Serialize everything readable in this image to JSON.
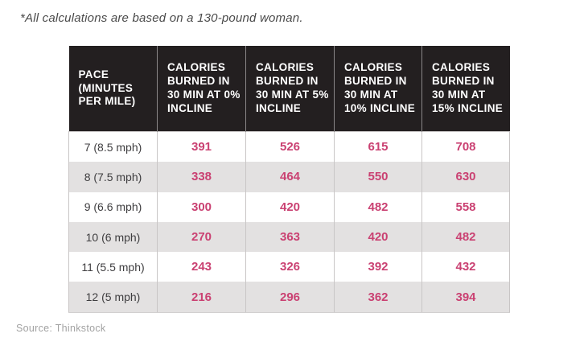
{
  "note": "*All calculations are based on a 130-pound woman.",
  "source": "Source: Thinkstock",
  "colors": {
    "header_bg": "#231f20",
    "header_text": "#ffffff",
    "row_white": "#ffffff",
    "row_alt_gray": "#e3e1e1",
    "value_pink": "#ca4172",
    "pace_text": "#3f3e40",
    "border_gray": "#c9c6c6",
    "note_gray": "#4a4a4a",
    "source_gray": "#a2a2a2"
  },
  "table": {
    "headers": [
      "PACE (MINUTES PER MILE)",
      "CALORIES BURNED IN 30 MIN AT 0% INCLINE",
      "CALORIES BURNED IN 30 MIN AT 5% INCLINE",
      "CALORIES BURNED IN 30 MIN AT 10% INCLINE",
      "CALORIES BURNED IN 30 MIN AT 15% INCLINE"
    ],
    "rows": [
      {
        "pace": "7 (8.5 mph)",
        "values": [
          "391",
          "526",
          "615",
          "708"
        ]
      },
      {
        "pace": "8 (7.5 mph)",
        "values": [
          "338",
          "464",
          "550",
          "630"
        ]
      },
      {
        "pace": "9 (6.6 mph)",
        "values": [
          "300",
          "420",
          "482",
          "558"
        ]
      },
      {
        "pace": "10 (6 mph)",
        "values": [
          "270",
          "363",
          "420",
          "482"
        ]
      },
      {
        "pace": "11 (5.5 mph)",
        "values": [
          "243",
          "326",
          "392",
          "432"
        ]
      },
      {
        "pace": "12 (5 mph)",
        "values": [
          "216",
          "296",
          "362",
          "394"
        ]
      }
    ]
  },
  "chart_data": {
    "type": "table",
    "title": "*All calculations are based on a 130-pound woman.",
    "columns": [
      "PACE (MINUTES PER MILE)",
      "CALORIES BURNED IN 30 MIN AT 0% INCLINE",
      "CALORIES BURNED IN 30 MIN AT 5% INCLINE",
      "CALORIES BURNED IN 30 MIN AT 10% INCLINE",
      "CALORIES BURNED IN 30 MIN AT 15% INCLINE"
    ],
    "rows": [
      [
        "7 (8.5 mph)",
        391,
        526,
        615,
        708
      ],
      [
        "8 (7.5 mph)",
        338,
        464,
        550,
        630
      ],
      [
        "9 (6.6 mph)",
        300,
        420,
        482,
        558
      ],
      [
        "10 (6 mph)",
        270,
        363,
        420,
        482
      ],
      [
        "11 (5.5 mph)",
        243,
        326,
        392,
        432
      ],
      [
        "12 (5 mph)",
        216,
        296,
        362,
        394
      ]
    ],
    "source": "Source: Thinkstock",
    "accent_color": "#ca4172"
  }
}
